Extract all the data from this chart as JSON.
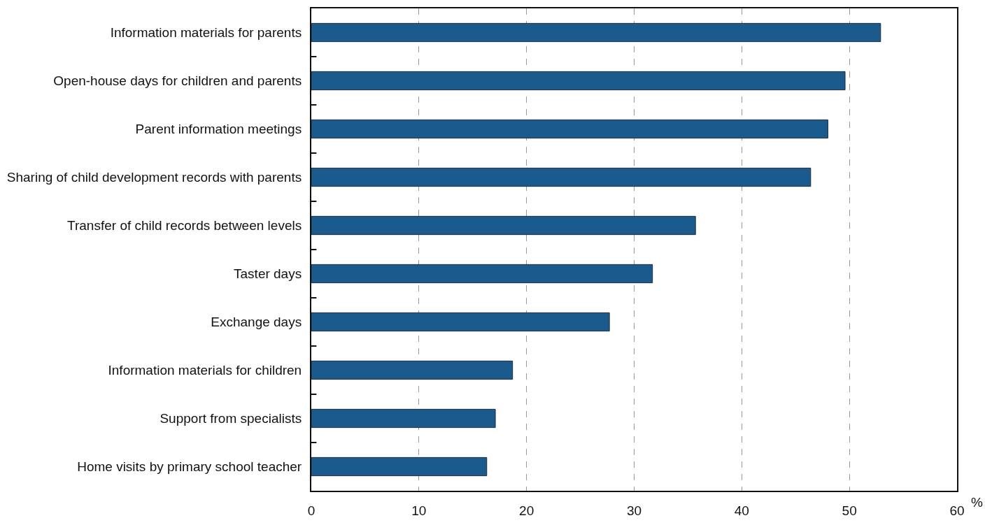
{
  "chart_data": {
    "type": "bar",
    "orientation": "horizontal",
    "xlabel": "%",
    "categories": [
      "Information materials for parents",
      "Open-house days for children and parents",
      "Parent information meetings",
      "Sharing of child development records with parents",
      "Transfer of child records between levels",
      "Taster days",
      "Exchange days",
      "Information materials for children",
      "Support from specialists",
      "Home visits by primary school teacher"
    ],
    "values": [
      52.9,
      49.6,
      48.0,
      46.4,
      35.7,
      31.7,
      27.7,
      18.7,
      17.1,
      16.3
    ],
    "color": "#1b5a8c",
    "xlim": [
      0,
      60
    ],
    "xticks": [
      0,
      10,
      20,
      30,
      40,
      50,
      60
    ],
    "grid": "x"
  }
}
